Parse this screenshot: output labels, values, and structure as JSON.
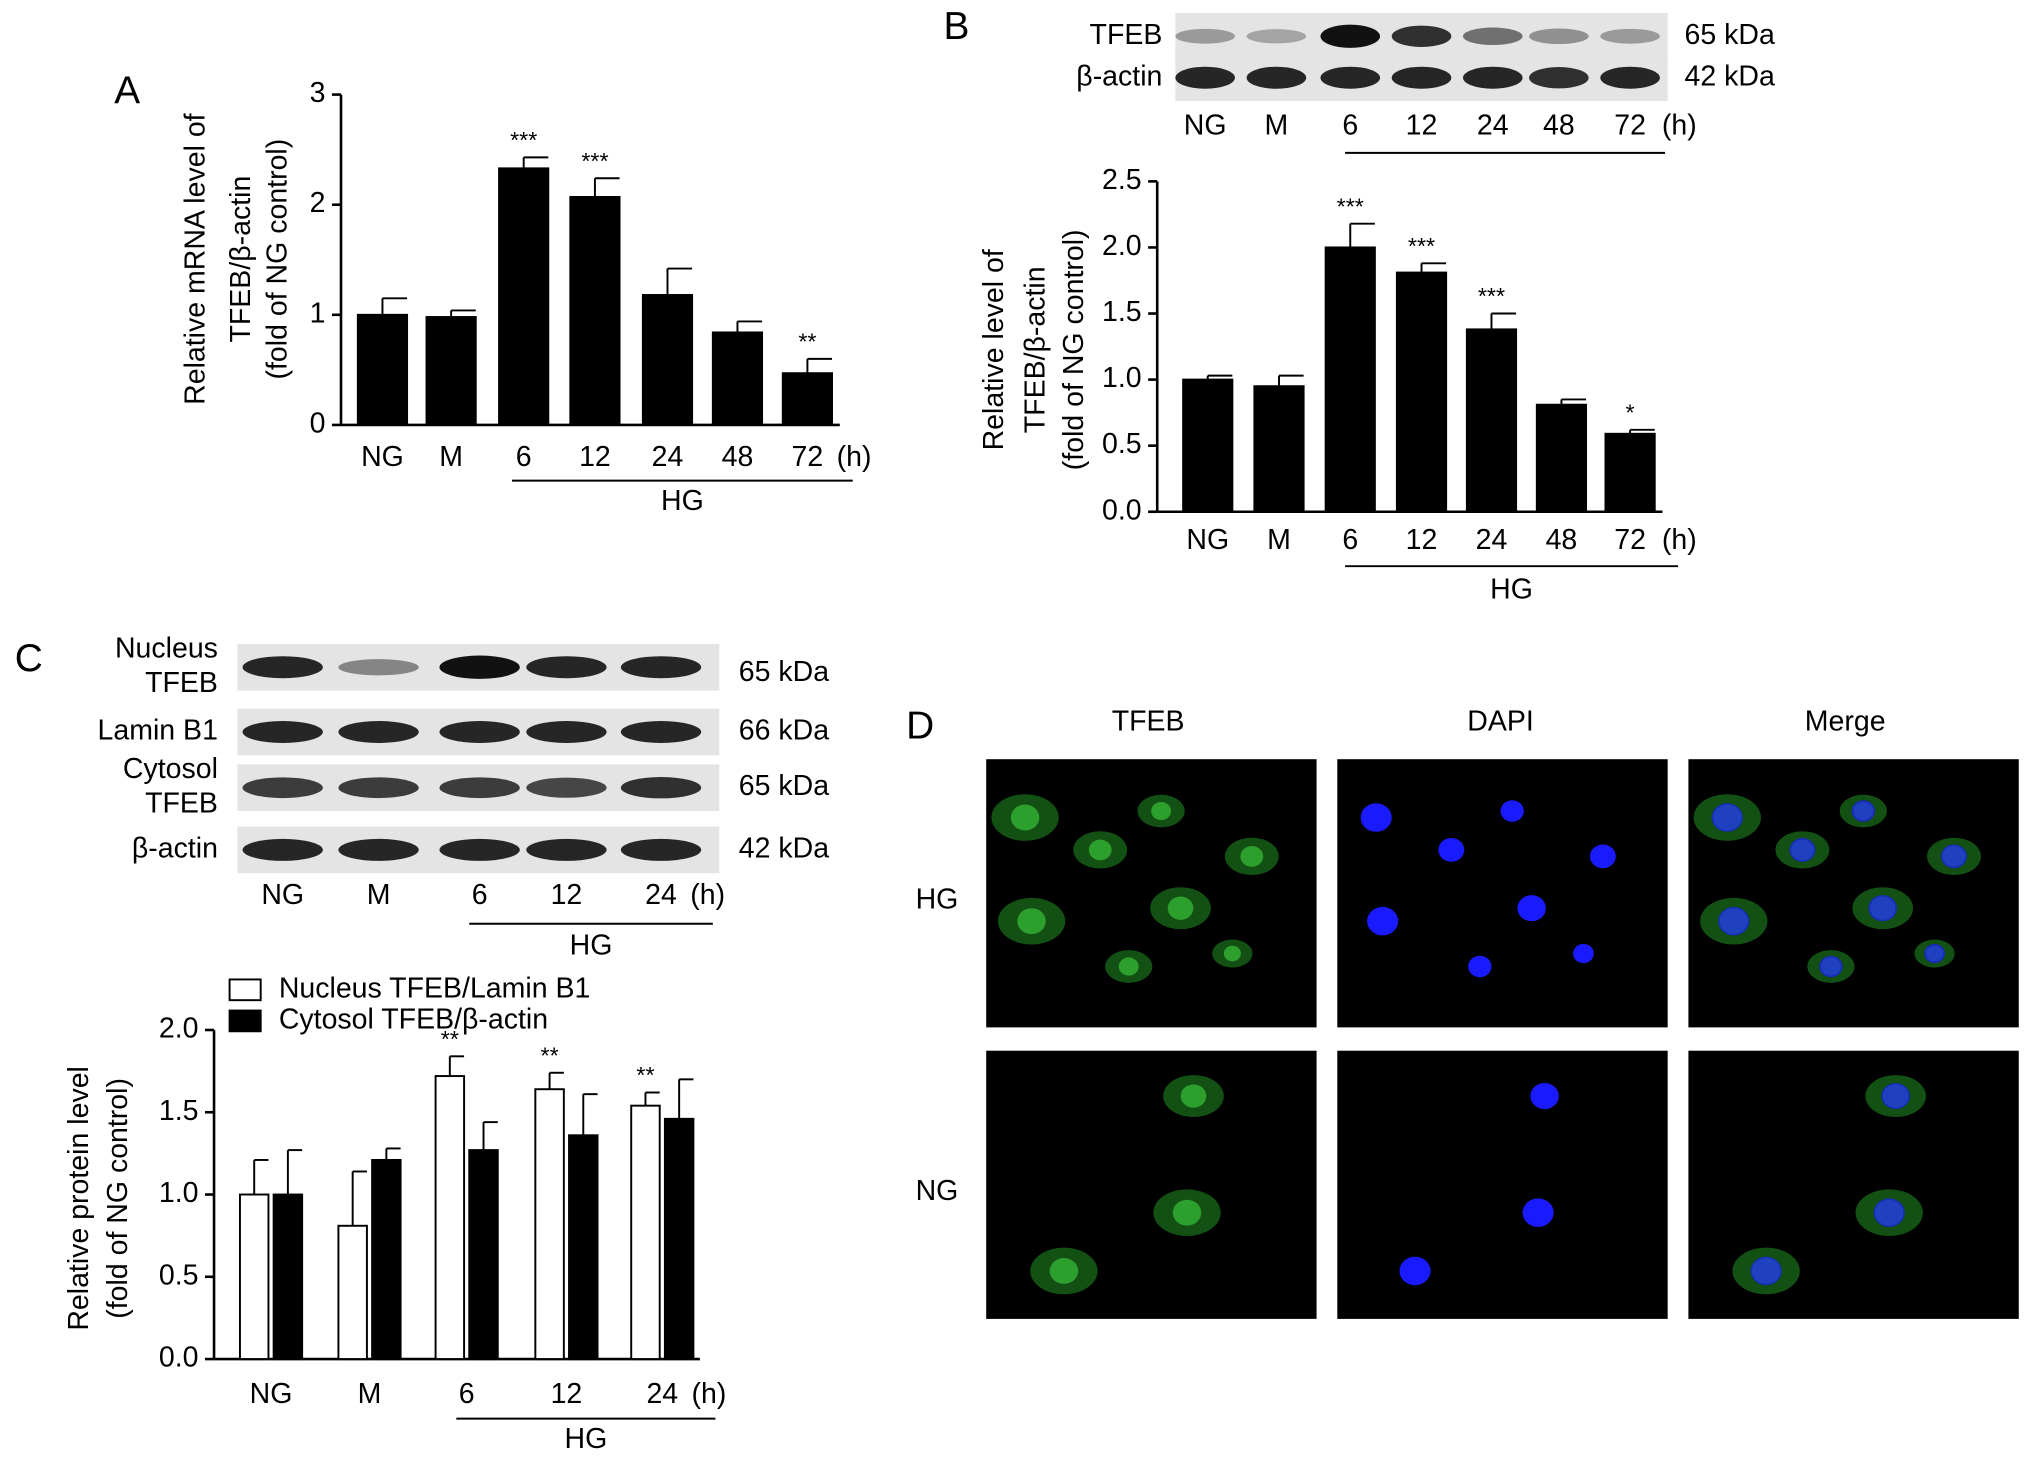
{
  "panel_labels": [
    "A",
    "B",
    "C",
    "D"
  ],
  "chart_data": [
    {
      "type": "bar",
      "ylabel_lines": [
        "Relative mRNA level of",
        "TFEB/β-actin",
        "(fold of NG control)"
      ],
      "categories": [
        "NG",
        "M",
        "6",
        "12",
        "24",
        "48",
        "72"
      ],
      "time_unit": "(h)",
      "group_label": "HG",
      "color": "#000000",
      "values": [
        1.0,
        0.98,
        2.33,
        2.07,
        1.18,
        0.84,
        0.47
      ],
      "errors": [
        0.15,
        0.06,
        0.1,
        0.17,
        0.24,
        0.1,
        0.13
      ],
      "significance": [
        null,
        null,
        "***",
        "***",
        null,
        null,
        "**"
      ],
      "ylim": [
        0,
        3
      ],
      "yticks": [
        0,
        1,
        2,
        3
      ]
    },
    {
      "type": "bar",
      "ylabel_lines": [
        "Relative level of",
        "TFEB/β-actin",
        "(fold of NG control)"
      ],
      "categories": [
        "NG",
        "M",
        "6",
        "12",
        "24",
        "48",
        "72"
      ],
      "time_unit": "(h)",
      "group_label": "HG",
      "color": "#000000",
      "values": [
        1.0,
        0.95,
        2.0,
        1.81,
        1.38,
        0.81,
        0.59
      ],
      "errors": [
        0.03,
        0.08,
        0.18,
        0.07,
        0.12,
        0.04,
        0.03
      ],
      "significance": [
        null,
        null,
        "***",
        "***",
        "***",
        null,
        "*"
      ],
      "ylim": [
        0,
        2.5
      ],
      "yticks": [
        {
          "value": 0,
          "label": "0.0"
        },
        0.5,
        {
          "value": 1,
          "label": "1.0"
        },
        1.5,
        {
          "value": 2,
          "label": "2.0"
        },
        2.5
      ]
    },
    {
      "type": "grouped_bar",
      "ylabel_lines": [
        "Relative protein level",
        "(fold of NG control)"
      ],
      "categories": [
        "NG",
        "M",
        "6",
        "12",
        "24"
      ],
      "time_unit": "(h)",
      "group_label": "HG",
      "series": [
        {
          "name": "Nucleus TFEB/Lamin B1",
          "color": "#ffffff",
          "values": [
            1.0,
            0.81,
            1.72,
            1.64,
            1.54
          ],
          "errors": [
            0.21,
            0.33,
            0.12,
            0.1,
            0.08
          ],
          "significance": [
            null,
            null,
            "**",
            "**",
            "**"
          ]
        },
        {
          "name": "Cytosol TFEB/β-actin",
          "color": "#000000",
          "values": [
            1.0,
            1.21,
            1.27,
            1.36,
            1.46
          ],
          "errors": [
            0.27,
            0.07,
            0.17,
            0.25,
            0.24
          ]
        }
      ],
      "ylim": [
        0,
        2
      ],
      "yticks": [
        {
          "value": 0,
          "label": "0.0"
        },
        0.5,
        {
          "value": 1,
          "label": "1.0"
        },
        1.5,
        {
          "value": 2,
          "label": "2.0"
        }
      ]
    }
  ],
  "blots": [
    {
      "rows": [
        {
          "label": [
            "TFEB"
          ],
          "size": "65 kDa"
        },
        {
          "label": [
            "β-actin"
          ],
          "size": "42 kDa"
        }
      ]
    },
    {
      "rows": [
        {
          "label": [
            "Nucleus",
            "TFEB"
          ],
          "size": "65 kDa"
        },
        {
          "label": [
            "Lamin B1"
          ],
          "size": "66 kDa"
        },
        {
          "label": [
            "Cytosol",
            "TFEB"
          ],
          "size": "65 kDa"
        },
        {
          "label": [
            "β-actin"
          ],
          "size": "42 kDa"
        }
      ]
    }
  ],
  "panel_d": {
    "columns": [
      "TFEB",
      "DAPI",
      "Merge"
    ],
    "rows": [
      "HG",
      "NG"
    ]
  }
}
